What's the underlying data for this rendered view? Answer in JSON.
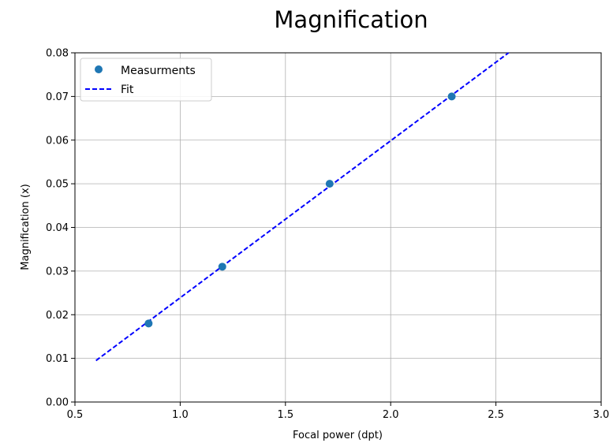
{
  "chart_data": {
    "type": "scatter",
    "title": "Magnification",
    "xlabel": "Focal power (dpt)",
    "ylabel": "Magnification (x)",
    "xlim": [
      0.5,
      3.0
    ],
    "ylim": [
      0.0,
      0.08
    ],
    "x_ticks": [
      "0.5",
      "1.0",
      "1.5",
      "2.0",
      "2.5",
      "3.0"
    ],
    "y_ticks": [
      "0.00",
      "0.01",
      "0.02",
      "0.03",
      "0.04",
      "0.05",
      "0.06",
      "0.07",
      "0.08"
    ],
    "grid": true,
    "legend_position": "top-left",
    "series": [
      {
        "name": "Measurments",
        "kind": "markers",
        "color": "#1f77b4",
        "x": [
          0.85,
          1.2,
          1.71,
          2.29
        ],
        "y": [
          0.018,
          0.031,
          0.05,
          0.07
        ]
      },
      {
        "name": "Fit",
        "kind": "dashed-line",
        "color": "#0000ff",
        "x": [
          0.6,
          2.56
        ],
        "y": [
          0.0095,
          0.08
        ]
      }
    ]
  }
}
